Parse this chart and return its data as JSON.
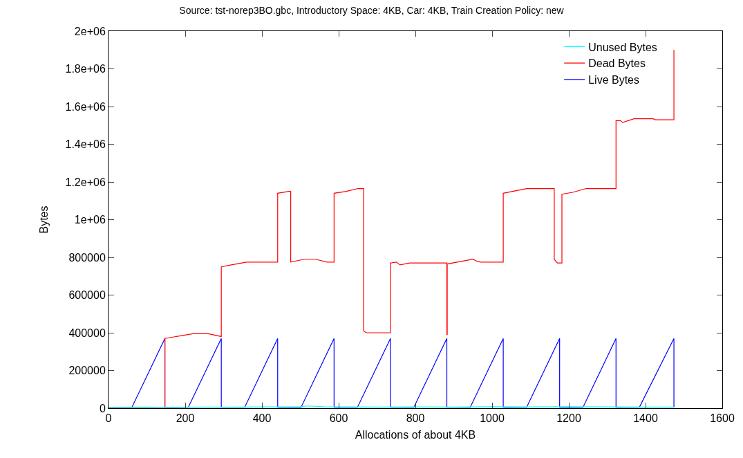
{
  "chart_data": {
    "type": "line",
    "title": "Source: tst-norep3BO.gbc, Introductory Space: 4KB, Car: 4KB, Train Creation Policy: new",
    "xlabel": "Allocations of about 4KB",
    "ylabel": "Bytes",
    "xlim": [
      0,
      1600
    ],
    "xticks": [
      0,
      200,
      400,
      600,
      800,
      1000,
      1200,
      1400,
      1600
    ],
    "ylim": [
      0,
      2000000
    ],
    "yticks": [
      0,
      200000,
      400000,
      600000,
      800000,
      {
        "value": 1000000,
        "label": "1e+06"
      },
      {
        "value": 1200000,
        "label": "1.2e+06"
      },
      {
        "value": 1400000,
        "label": "1.4e+06"
      },
      {
        "value": 1600000,
        "label": "1.6e+06"
      },
      {
        "value": 1800000,
        "label": "1.8e+06"
      },
      {
        "value": 2000000,
        "label": "2e+06"
      }
    ],
    "grid": false,
    "legend": "top right",
    "marker": "none",
    "line_style": "solid",
    "series": [
      {
        "name": "Unused Bytes",
        "color": "#00ffff",
        "x": [
          0,
          100,
          150,
          250,
          300,
          400,
          500,
          520,
          560,
          600,
          700,
          800,
          900,
          1000,
          1100,
          1200,
          1300,
          1400,
          1474
        ],
        "values": [
          5000,
          6000,
          4000,
          6000,
          5000,
          7000,
          8000,
          12000,
          8000,
          7000,
          6000,
          7000,
          6000,
          8000,
          7000,
          8000,
          7000,
          6000,
          6000
        ]
      },
      {
        "name": "Dead Bytes",
        "color": "#ff0000",
        "x": [
          0,
          147,
          147,
          220,
          260,
          294,
          294,
          320,
          360,
          441,
          441,
          470,
          475,
          475,
          510,
          540,
          570,
          588,
          588,
          620,
          650,
          665,
          665,
          672,
          735,
          735,
          750,
          760,
          785,
          882,
          882,
          883,
          883,
          950,
          960,
          970,
          1029,
          1029,
          1090,
          1160,
          1162,
          1162,
          1170,
          1182,
          1182,
          1210,
          1245,
          1323,
          1323,
          1335,
          1340,
          1370,
          1420,
          1425,
          1474,
          1474
        ],
        "values": [
          0,
          0,
          370000,
          395000,
          395000,
          380000,
          750000,
          760000,
          775000,
          775000,
          1140000,
          1150000,
          1150000,
          775000,
          790000,
          790000,
          775000,
          775000,
          1140000,
          1150000,
          1165000,
          1165000,
          410000,
          400000,
          400000,
          770000,
          775000,
          760000,
          770000,
          770000,
          390000,
          390000,
          765000,
          790000,
          780000,
          775000,
          775000,
          1140000,
          1165000,
          1165000,
          1165000,
          790000,
          770000,
          770000,
          1135000,
          1145000,
          1165000,
          1165000,
          1525000,
          1525000,
          1515000,
          1535000,
          1535000,
          1530000,
          1530000,
          1900000
        ]
      },
      {
        "name": "Live Bytes",
        "color": "#0000ff",
        "x": [
          0,
          61,
          147,
          147,
          208,
          294,
          294,
          355,
          441,
          441,
          502,
          588,
          588,
          649,
          735,
          735,
          796,
          882,
          882,
          943,
          1029,
          1029,
          1090,
          1176,
          1176,
          1237,
          1323,
          1323,
          1384,
          1474,
          1474
        ],
        "values": [
          5000,
          5000,
          370000,
          5000,
          5000,
          370000,
          5000,
          5000,
          370000,
          5000,
          5000,
          370000,
          5000,
          5000,
          370000,
          5000,
          5000,
          370000,
          5000,
          5000,
          370000,
          5000,
          5000,
          370000,
          5000,
          5000,
          370000,
          5000,
          5000,
          370000,
          5000
        ]
      }
    ]
  }
}
